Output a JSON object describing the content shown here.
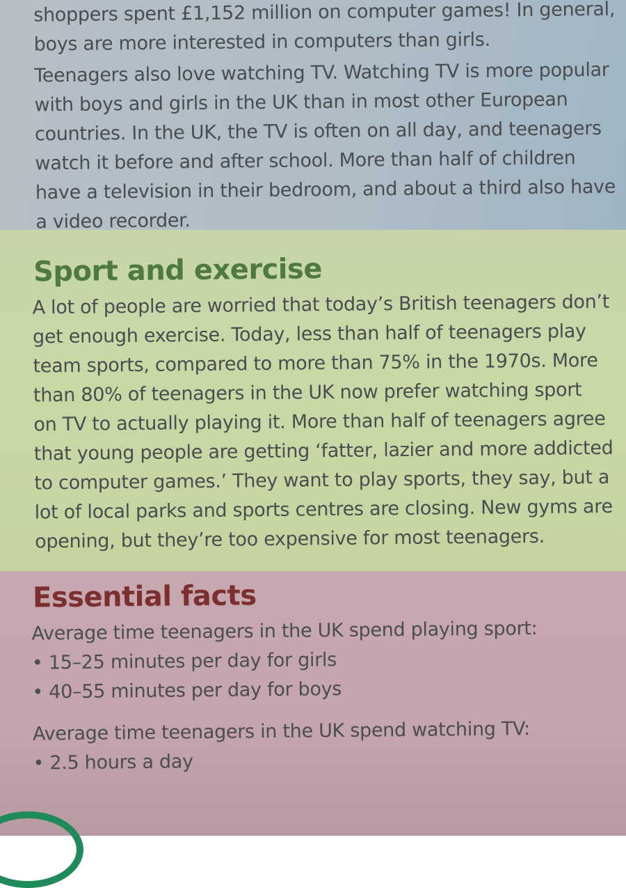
{
  "intro": {
    "lines": [
      "shoppers spent £1,152 million on computer games! In general,",
      "boys are more interested in computers than girls."
    ]
  },
  "tv": {
    "lines": [
      "Teenagers also love watching TV. Watching TV is more popular",
      "with boys and girls in the UK than in most other European",
      "countries. In the UK, the TV is often on all day, and teenagers",
      "watch it before and after school. More than half of children",
      "have a television in their bedroom, and about a third also have",
      "a video recorder."
    ]
  },
  "sport": {
    "heading": "Sport and exercise",
    "lines": [
      "A lot of people are worried that today’s British teenagers don’t",
      "get enough exercise. Today, less than half of teenagers play",
      "team sports, compared to more than 75% in the 1970s. More",
      "than 80% of teenagers in the UK now prefer watching sport",
      "on TV to actually playing it. More than half of teenagers agree",
      "that young people are getting ‘fatter, lazier and more addicted",
      "to computer games.’ They want to play sports, they say, but a",
      "lot of local parks and sports centres are closing. New gyms are",
      "opening, but they’re too expensive for most teenagers."
    ]
  },
  "facts": {
    "heading": "Essential facts",
    "sport_intro": "Average time teenagers in the UK spend playing sport:",
    "sport_items": [
      "• 15–25 minutes per day for girls",
      "• 40–55 minutes per day for boys"
    ],
    "tv_intro": "Average time teenagers in the UK spend watching TV:",
    "tv_items": [
      "• 2.5 hours a day"
    ]
  },
  "colors": {
    "sport_heading": "#4f7a3f",
    "facts_heading": "#7c2f2f",
    "arc": "#1f8a5a"
  }
}
